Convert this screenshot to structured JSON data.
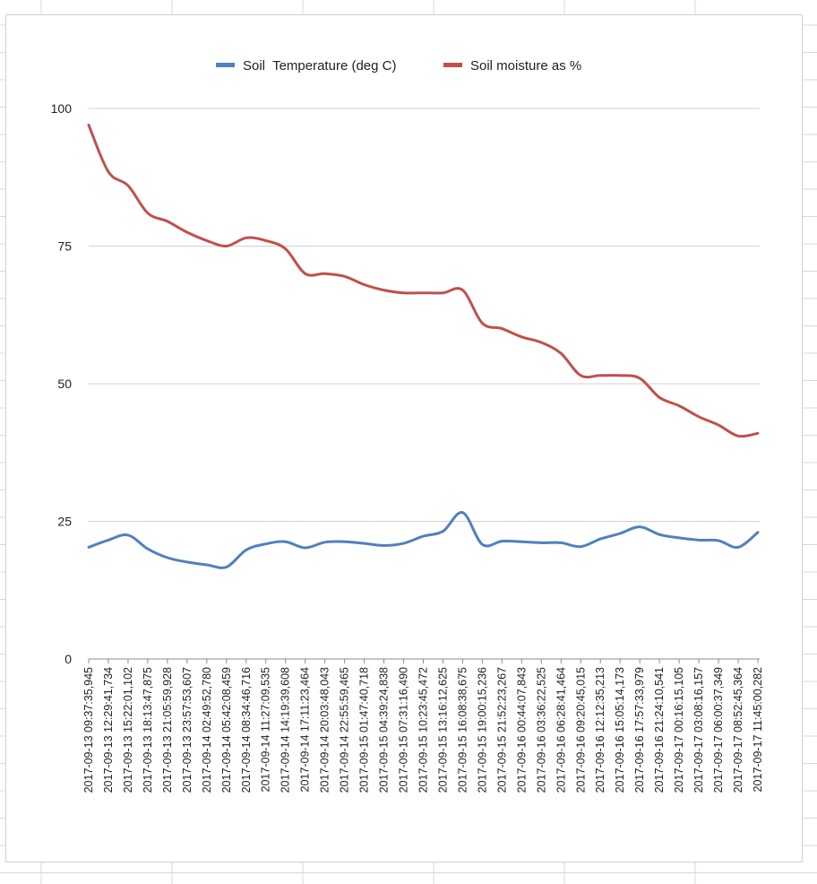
{
  "chart_data": {
    "type": "line",
    "title": "",
    "xlabel": "",
    "ylabel": "",
    "ylim": [
      0,
      100
    ],
    "y_ticks": [
      0,
      25,
      50,
      75,
      100
    ],
    "grid": "horizontal",
    "legend_position": "top",
    "x_categories": [
      "2017-09-13 09:37:35,945",
      "2017-09-13 12:29:41,734",
      "2017-09-13 15:22:01,102",
      "2017-09-13 18:13:47,875",
      "2017-09-13 21:05:59,928",
      "2017-09-13 23:57:53,607",
      "2017-09-14 02:49:52,780",
      "2017-09-14 05:42:08,459",
      "2017-09-14 08:34:46,716",
      "2017-09-14 11:27:09,535",
      "2017-09-14 14:19:39,608",
      "2017-09-14 17:11:23,464",
      "2017-09-14 20:03:48,043",
      "2017-09-14 22:55:59,465",
      "2017-09-15 01:47:40,718",
      "2017-09-15 04:39:24,838",
      "2017-09-15 07:31:16,490",
      "2017-09-15 10:23:45,472",
      "2017-09-15 13:16:12,625",
      "2017-09-15 16:08:38,675",
      "2017-09-15 19:00:15,236",
      "2017-09-15 21:52:23,267",
      "2017-09-16 00:44:07,843",
      "2017-09-16 03:36:22,525",
      "2017-09-16 06:28:41,464",
      "2017-09-16 09:20:45,015",
      "2017-09-16 12:12:35,213",
      "2017-09-16 15:05:14,173",
      "2017-09-16 17:57:33,979",
      "2017-09-16 21:24:10,541",
      "2017-09-17 00:16:15,105",
      "2017-09-17 03:08:16,157",
      "2017-09-17 06:00:37,349",
      "2017-09-17 08:52:45,364",
      "2017-09-17 11:45:00,282"
    ],
    "series": [
      {
        "name": "Soil  Temperature (deg C)",
        "color": "#4f81bd",
        "values": [
          20.3,
          21.6,
          22.5,
          20.0,
          18.4,
          17.6,
          17.1,
          16.7,
          19.8,
          20.9,
          21.3,
          20.2,
          21.2,
          21.3,
          21.0,
          20.6,
          21.0,
          22.3,
          23.2,
          26.6,
          20.8,
          21.4,
          21.3,
          21.1,
          21.1,
          20.4,
          21.8,
          22.8,
          24.0,
          22.6,
          22.0,
          21.6,
          21.5,
          20.3,
          23.0
        ]
      },
      {
        "name": "Soil moisture as %",
        "color": "#c0504d",
        "values": [
          97.0,
          88.5,
          86.0,
          81.0,
          79.5,
          77.5,
          76.0,
          75.0,
          76.5,
          76.0,
          74.5,
          70.0,
          70.0,
          69.5,
          68.0,
          67.0,
          66.5,
          66.5,
          66.5,
          67.0,
          61.0,
          60.0,
          58.5,
          57.5,
          55.5,
          51.5,
          51.5,
          51.5,
          51.0,
          47.5,
          46.0,
          44.0,
          42.5,
          40.5,
          41.0
        ]
      }
    ]
  }
}
